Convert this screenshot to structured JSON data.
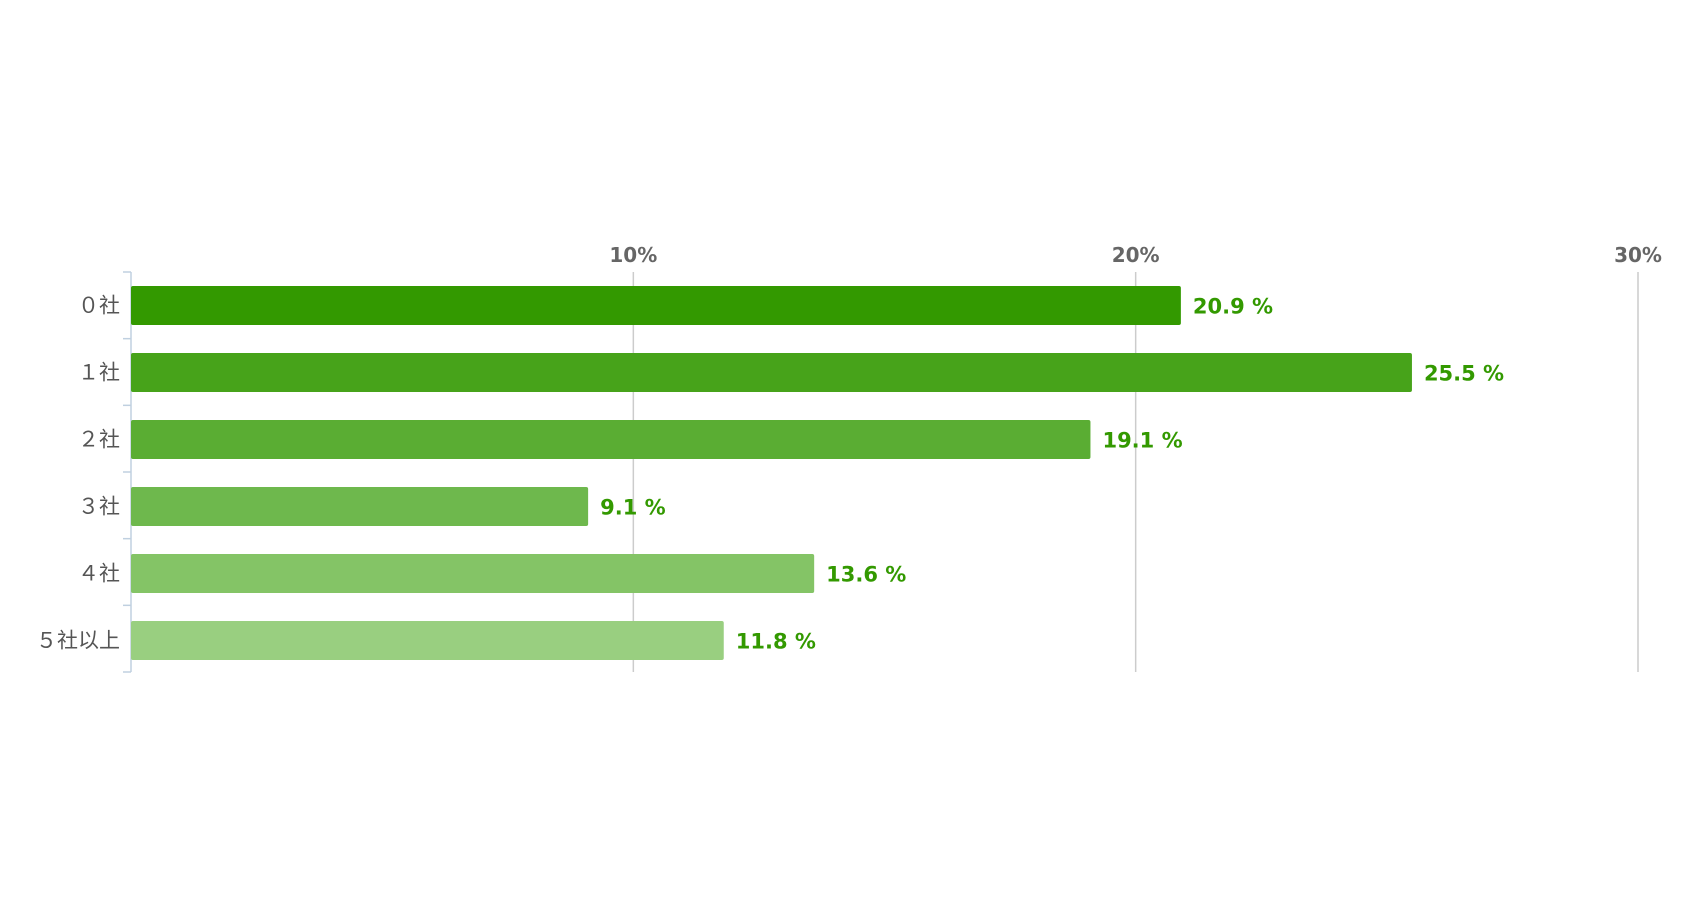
{
  "chart_data": {
    "type": "bar",
    "orientation": "horizontal",
    "title": "",
    "xlabel": "",
    "ylabel": "",
    "categories": [
      "０社",
      "１社",
      "２社",
      "３社",
      "４社",
      "５社以上"
    ],
    "values": [
      20.9,
      25.5,
      19.1,
      9.1,
      13.6,
      11.8
    ],
    "value_labels": [
      "20.9 %",
      "25.5 %",
      "19.1 %",
      "9.1 %",
      "13.6 %",
      "11.8 %"
    ],
    "xlim": [
      0,
      30
    ],
    "x_ticks": [
      10,
      20,
      30
    ],
    "x_tick_labels": [
      "10%",
      "20%",
      "30%"
    ],
    "x_axis_position": "top",
    "grid": true,
    "legend": "none",
    "bar_colors": [
      "#339900",
      "#47a31a",
      "#5aad33",
      "#6eb84d",
      "#84c466",
      "#99cf80"
    ],
    "label_color": "#339900"
  }
}
